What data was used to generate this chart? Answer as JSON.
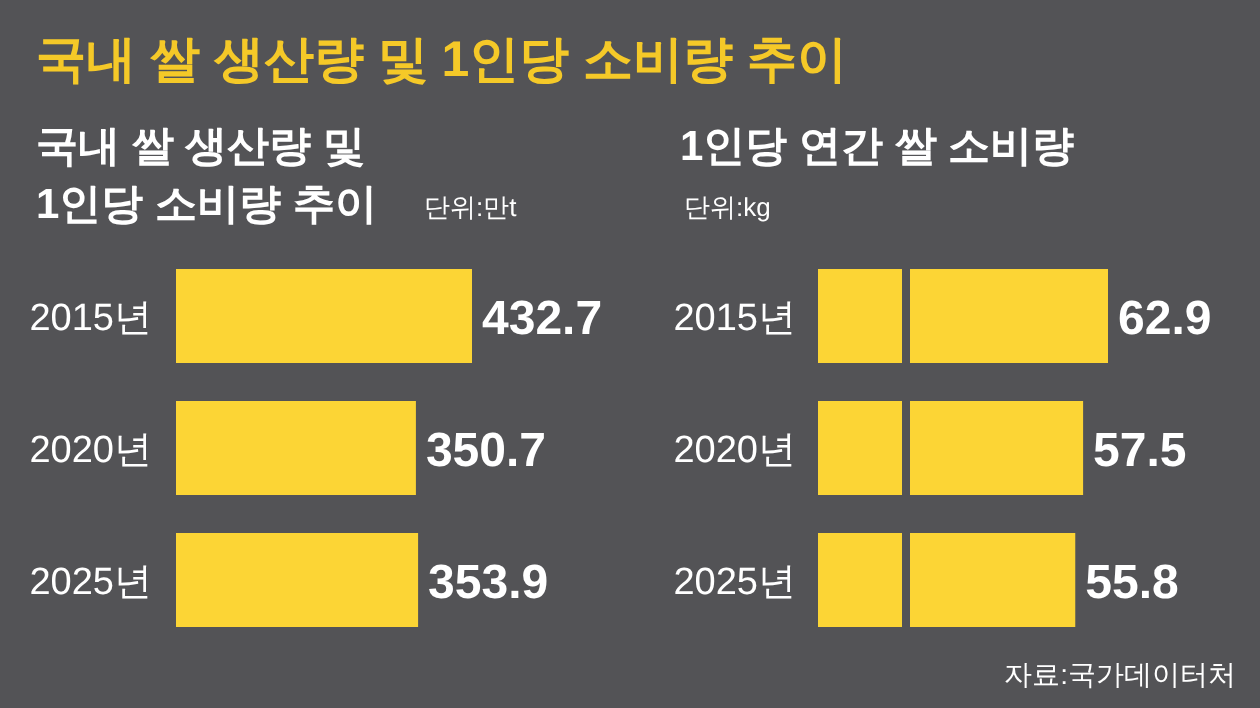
{
  "chart_data": [
    {
      "type": "bar",
      "orientation": "horizontal",
      "title": "국내 쌀 생산량 및 1인당 소비량 추이",
      "subtitle": "국내 쌀 생산량 및\n1인당 소비량 추이",
      "annotations": [
        "단위:만t"
      ],
      "categories": [
        "2015년",
        "2020년",
        "2025년"
      ],
      "series": [
        {
          "color": "#fcd535",
          "values": [
            432.7,
            350.7,
            353.9
          ]
        }
      ],
      "data_labels": true
    },
    {
      "type": "bar",
      "orientation": "horizontal",
      "subtitle": "1인당 연간 쌀 소비량",
      "annotations": [
        "단위:kg",
        "자료:국가데이터처"
      ],
      "categories": [
        "2015년",
        "2020년",
        "2025년"
      ],
      "series": [
        {
          "color": "#fcd535",
          "values": [
            62.9,
            57.5,
            55.8
          ]
        }
      ],
      "data_labels": true
    }
  ]
}
